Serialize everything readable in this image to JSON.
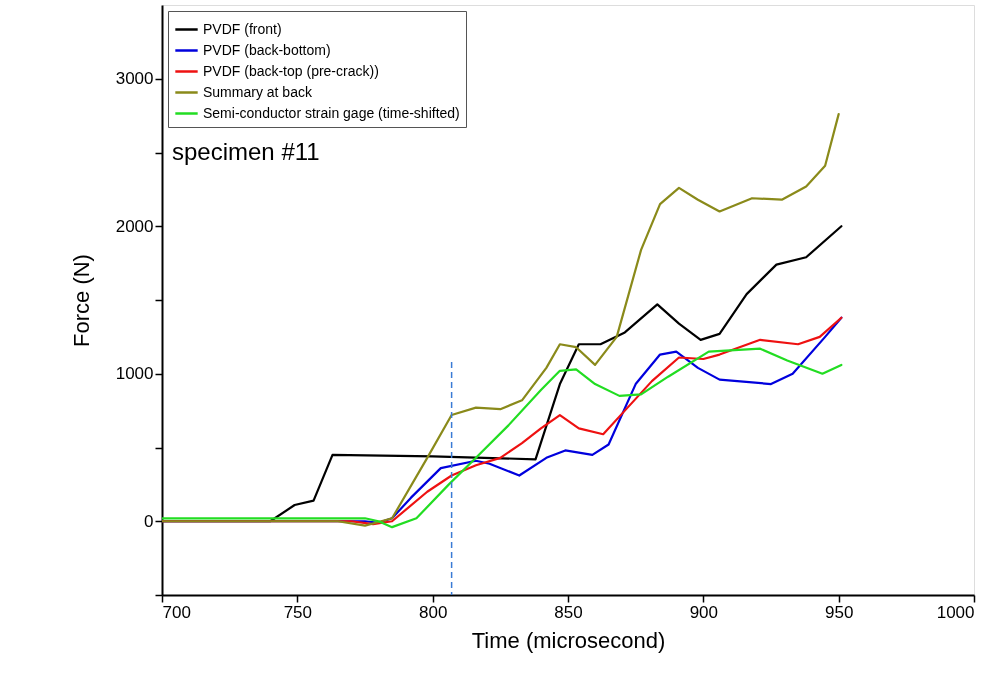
{
  "chart_data": {
    "type": "line",
    "xlabel": "Time (microsecond)",
    "ylabel": "Force (N)",
    "annotations": [
      "specimen #11"
    ],
    "xlim": [
      700,
      1000
    ],
    "ylim": [
      -500,
      3500
    ],
    "xticks": [
      700,
      750,
      800,
      850,
      900,
      950,
      1000
    ],
    "yticks": [
      {
        "value": -500,
        "label": null
      },
      0,
      {
        "value": 500,
        "label": null
      },
      1000,
      {
        "value": 1500,
        "label": null
      },
      2000,
      {
        "value": 2500,
        "label": null
      },
      3000
    ],
    "grid": false,
    "legend": "top left",
    "marker": "none",
    "line_style": "solid",
    "ref_lines": [
      {
        "axis": "x",
        "value": 807,
        "label": null,
        "color": "#3a7bd5",
        "line_style": "dashed"
      }
    ],
    "series": [
      {
        "name": "PVDF (front)",
        "color": "#000000",
        "x": [
          700,
          740,
          749,
          756,
          763,
          800,
          838,
          847,
          854,
          862,
          871,
          883,
          891,
          899,
          906,
          916,
          927,
          938,
          951
        ],
        "values": [
          0,
          0,
          110,
          140,
          450,
          440,
          420,
          930,
          1200,
          1200,
          1280,
          1470,
          1340,
          1230,
          1270,
          1540,
          1740,
          1790,
          2000
        ]
      },
      {
        "name": "PVDF (back-bottom)",
        "color": "#0000dd",
        "x": [
          700,
          775,
          780,
          785,
          792,
          803,
          816,
          821,
          832,
          842,
          849,
          859,
          865,
          875,
          884,
          890,
          898,
          906,
          925,
          933,
          945,
          951
        ],
        "values": [
          0,
          0,
          -10,
          20,
          160,
          360,
          410,
          390,
          310,
          430,
          480,
          450,
          520,
          930,
          1130,
          1150,
          1040,
          960,
          930,
          1000,
          1250,
          1380
        ]
      },
      {
        "name": "PVDF (back-top (pre-crack))",
        "color": "#ee1111",
        "x": [
          700,
          770,
          778,
          785,
          798,
          807,
          816,
          825,
          833,
          840,
          847,
          854,
          863,
          871,
          881,
          891,
          900,
          906,
          921,
          935,
          943,
          951
        ],
        "values": [
          0,
          0,
          -20,
          0,
          200,
          310,
          380,
          430,
          530,
          630,
          720,
          630,
          590,
          750,
          950,
          1110,
          1100,
          1130,
          1230,
          1200,
          1250,
          1380
        ]
      },
      {
        "name": "Summary at back",
        "color": "#8a8a1a",
        "x": [
          700,
          765,
          775,
          781,
          785,
          798,
          807,
          816,
          825,
          833,
          842,
          847,
          853,
          860,
          868,
          877,
          884,
          891,
          898,
          906,
          918,
          929,
          938,
          945,
          950
        ],
        "values": [
          0,
          0,
          -30,
          0,
          20,
          430,
          720,
          770,
          760,
          820,
          1040,
          1200,
          1180,
          1060,
          1250,
          1840,
          2150,
          2260,
          2180,
          2100,
          2190,
          2180,
          2270,
          2410,
          2760
        ]
      },
      {
        "name": "Semi-conductor strain gage (time-shifted)",
        "color": "#22dd22",
        "x": [
          700,
          775,
          780,
          785,
          794,
          806,
          816,
          828,
          840,
          847,
          853,
          860,
          869,
          877,
          887,
          902,
          921,
          931,
          944,
          951
        ],
        "values": [
          20,
          20,
          0,
          -40,
          20,
          250,
          430,
          650,
          890,
          1020,
          1030,
          930,
          850,
          860,
          980,
          1150,
          1170,
          1090,
          1000,
          1060
        ]
      }
    ]
  }
}
